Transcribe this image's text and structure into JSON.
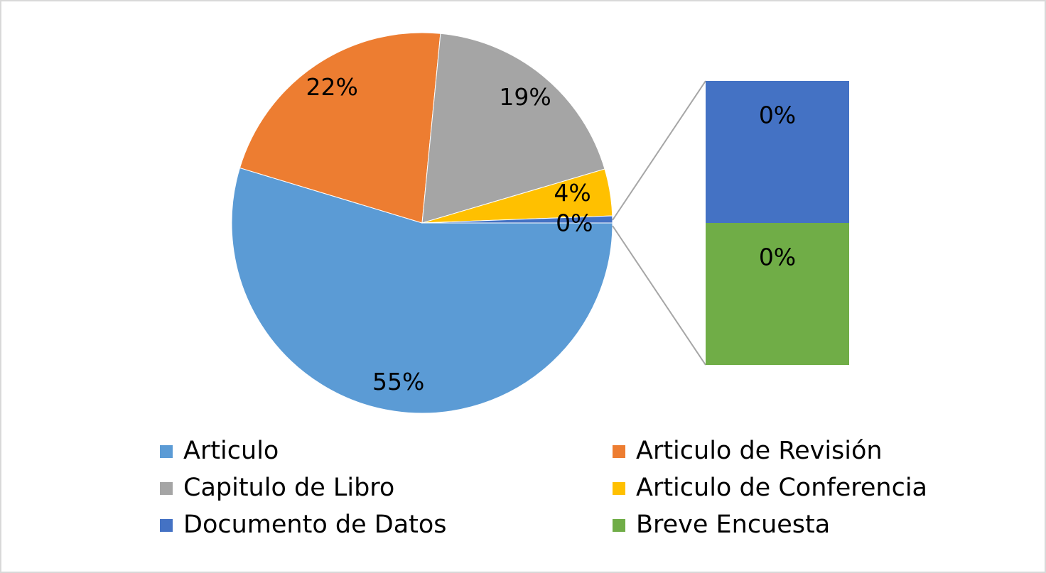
{
  "chart_data": {
    "type": "pie-of-bar",
    "categories": [
      "Articulo",
      "Articulo de Revisión",
      "Capitulo de Libro",
      "Articulo de Conferencia",
      "Documento de Datos",
      "Breve Encuesta"
    ],
    "values": [
      55,
      22,
      19,
      4,
      0.3,
      0.3
    ],
    "value_labels": [
      "55%",
      "22%",
      "19%",
      "4%",
      "0%",
      "0%"
    ],
    "colors": [
      "#5b9bd5",
      "#ed7d31",
      "#a5a5a5",
      "#ffc000",
      "#4472c4",
      "#70ad47"
    ],
    "split_from_index": 4,
    "split_label": "0%"
  }
}
